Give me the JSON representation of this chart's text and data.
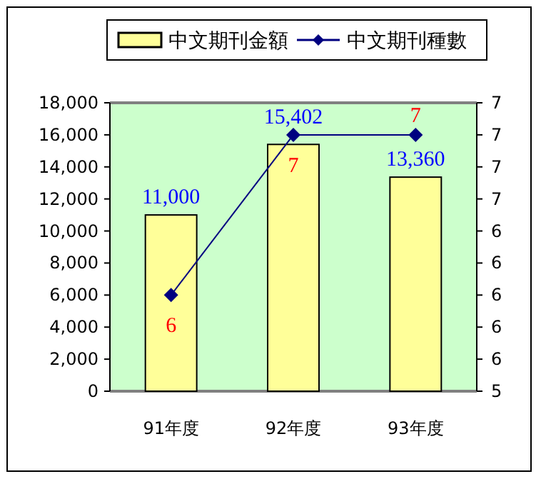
{
  "chart_data": {
    "type": "bar",
    "categories": [
      "91年度",
      "92年度",
      "93年度"
    ],
    "series": [
      {
        "name": "中文期刊金額",
        "color": "#ffff99",
        "values": [
          11000,
          15402,
          13360
        ],
        "value_labels": [
          "11,000",
          "15,402",
          "13,360"
        ]
      },
      {
        "name": "中文期刊種數",
        "type": "line",
        "axis": "y2",
        "color": "#000080",
        "values": [
          6,
          7,
          7
        ],
        "value_labels": [
          "6",
          "7",
          "7"
        ]
      }
    ],
    "ylim": [
      0,
      18000
    ],
    "yticks": [
      {
        "value": 0,
        "label": "0"
      },
      {
        "value": 2000,
        "label": "2,000"
      },
      {
        "value": 4000,
        "label": "4,000"
      },
      {
        "value": 6000,
        "label": "6,000"
      },
      {
        "value": 8000,
        "label": "8,000"
      },
      {
        "value": 10000,
        "label": "10,000"
      },
      {
        "value": 12000,
        "label": "12,000"
      },
      {
        "value": 14000,
        "label": "14,000"
      },
      {
        "value": 16000,
        "label": "16,000"
      },
      {
        "value": 18000,
        "label": "18,000"
      }
    ],
    "y2lim": [
      5.4,
      7.2
    ],
    "y2ticks": [
      {
        "value": 5.4,
        "label": "5"
      },
      {
        "value": 5.6,
        "label": "6"
      },
      {
        "value": 5.8,
        "label": "6"
      },
      {
        "value": 6.0,
        "label": "6"
      },
      {
        "value": 6.2,
        "label": "6"
      },
      {
        "value": 6.4,
        "label": "6"
      },
      {
        "value": 6.6,
        "label": "7"
      },
      {
        "value": 6.8,
        "label": "7"
      },
      {
        "value": 7.0,
        "label": "7"
      },
      {
        "value": 7.2,
        "label": "7"
      }
    ],
    "marker": "diamond",
    "legend": "top"
  }
}
